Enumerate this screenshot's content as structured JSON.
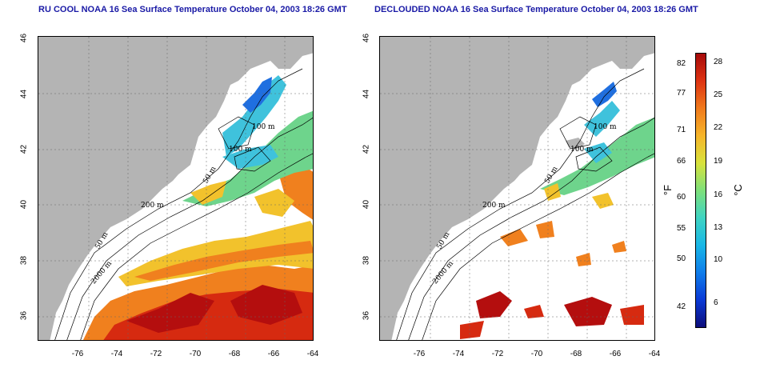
{
  "panels": [
    {
      "title": "RU COOL NOAA 16 Sea Surface Temperature October 04, 2003 18:26 GMT"
    },
    {
      "title": "DECLOUDED NOAA 16 Sea Surface Temperature October 04, 2003 18:26 GMT"
    }
  ],
  "lat_ticks": [
    "46",
    "44",
    "42",
    "40",
    "38",
    "36"
  ],
  "lon_ticks": [
    "-76",
    "-74",
    "-72",
    "-70",
    "-68",
    "-66",
    "-64"
  ],
  "contour_labels": [
    "100 m",
    "100 m",
    "50 m",
    "200 m",
    "50 m",
    "2000 m"
  ],
  "colorbar": {
    "unit_f": "°F",
    "unit_c": "°C",
    "f_ticks": [
      "82",
      "77",
      "71",
      "66",
      "60",
      "55",
      "50",
      "42"
    ],
    "c_ticks": [
      "28",
      "25",
      "22",
      "19",
      "16",
      "13",
      "10",
      "6"
    ]
  },
  "colors": {
    "land": "#b4b4b4",
    "title": "#1a1aa6",
    "warm": "#d62a10",
    "hot": "#b40e0e",
    "orange": "#f0801e",
    "yellow": "#f2c22c",
    "green": "#6ed48c",
    "cyan": "#3fc2dc",
    "blue": "#1f6fe0"
  }
}
